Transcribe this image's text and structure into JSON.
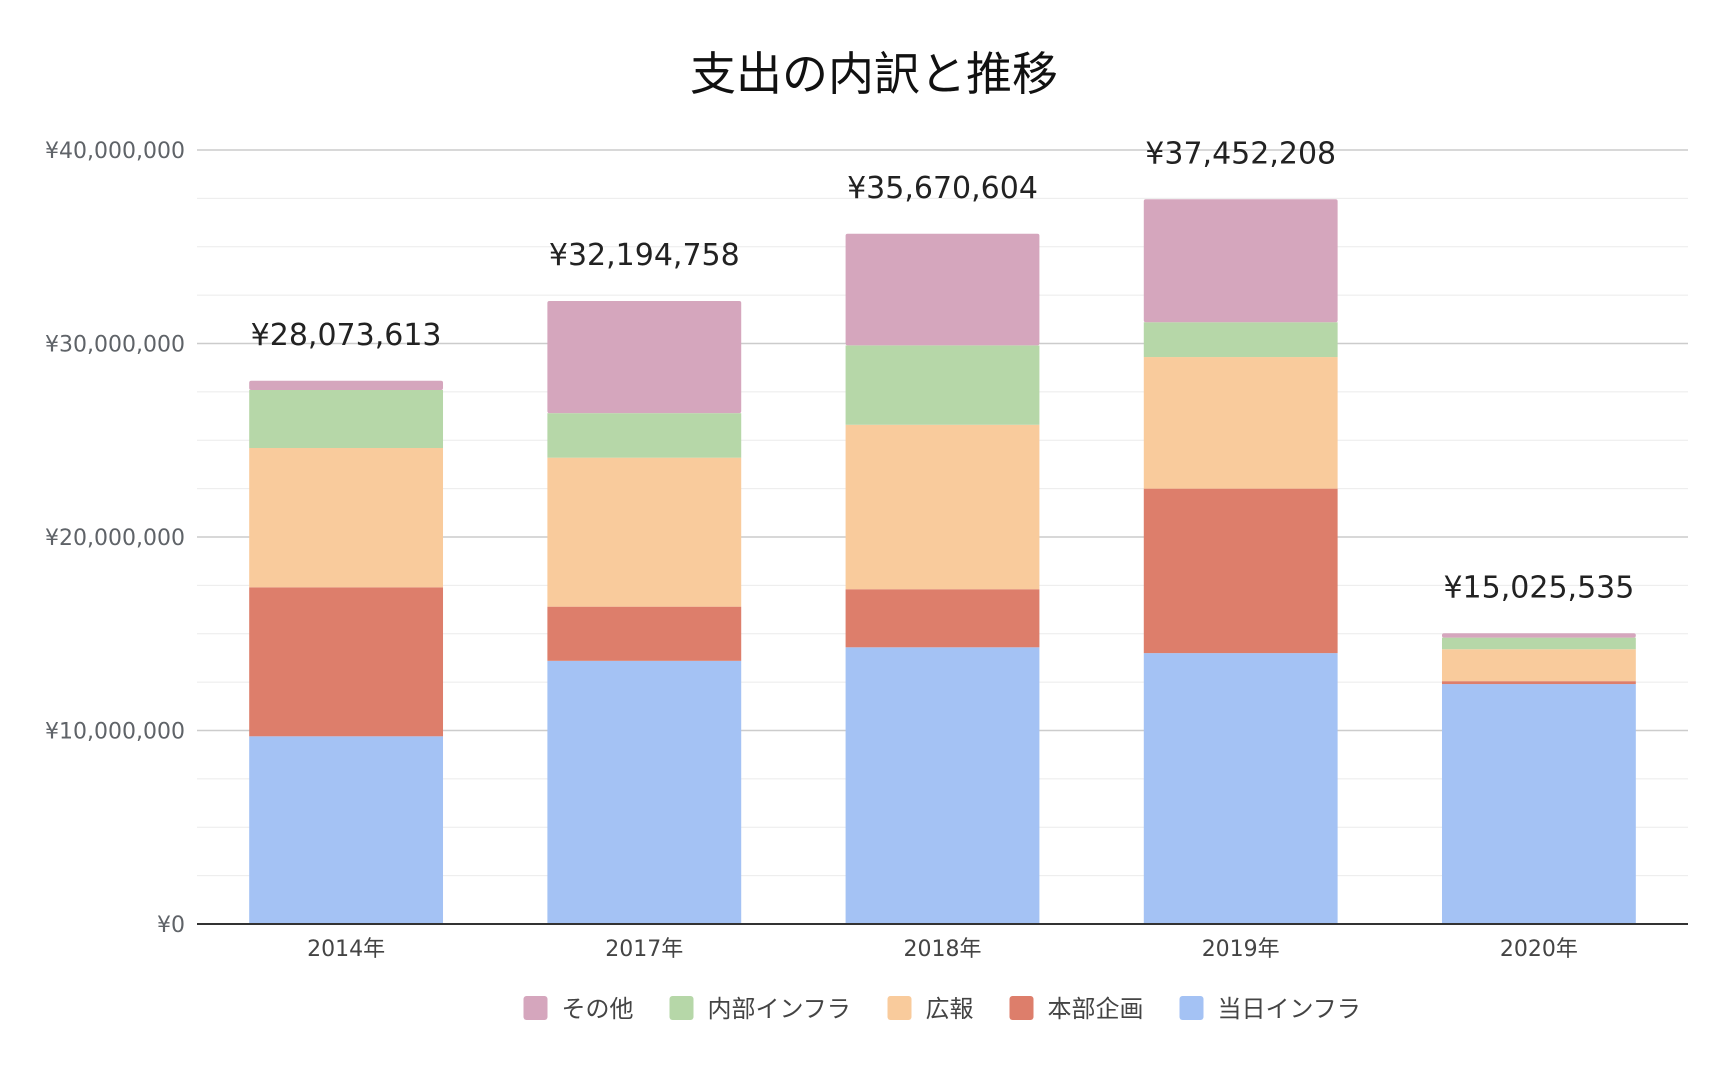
{
  "chart_data": {
    "type": "bar",
    "stacked": true,
    "title": "支出の内訳と推移",
    "categories": [
      "2014年",
      "2017年",
      "2018年",
      "2019年",
      "2020年"
    ],
    "series": [
      {
        "name": "当日インフラ",
        "color": "#a4c2f4",
        "values": [
          9700000,
          13600000,
          14300000,
          14000000,
          12400000
        ]
      },
      {
        "name": "本部企画",
        "color": "#dd7e6b",
        "values": [
          7700000,
          2800000,
          3000000,
          8500000,
          150000
        ]
      },
      {
        "name": "広報",
        "color": "#f9cb9c",
        "values": [
          7200000,
          7700000,
          8500000,
          6800000,
          1650000
        ]
      },
      {
        "name": "内部インフラ",
        "color": "#b6d7a8",
        "values": [
          3000000,
          2300000,
          4100000,
          1800000,
          600000
        ]
      },
      {
        "name": "その他",
        "color": "#d5a6bd",
        "values": [
          473613,
          5794758,
          5770604,
          6352208,
          225535
        ]
      }
    ],
    "totals": [
      28073613,
      32194758,
      35670604,
      37452208,
      15025535
    ],
    "total_labels": [
      "¥28,073,613",
      "¥32,194,758",
      "¥35,670,604",
      "¥37,452,208",
      "¥15,025,535"
    ],
    "ylim": [
      0,
      40000000
    ],
    "y_ticks": [
      0,
      10000000,
      20000000,
      30000000,
      40000000
    ],
    "y_tick_labels": [
      "¥0",
      "¥10,000,000",
      "¥20,000,000",
      "¥30,000,000",
      "¥40,000,000"
    ],
    "minor_grid_step": 2500000,
    "grid": true,
    "legend_position": "bottom",
    "legend_order": [
      "その他",
      "内部インフラ",
      "広報",
      "本部企画",
      "当日インフラ"
    ]
  }
}
